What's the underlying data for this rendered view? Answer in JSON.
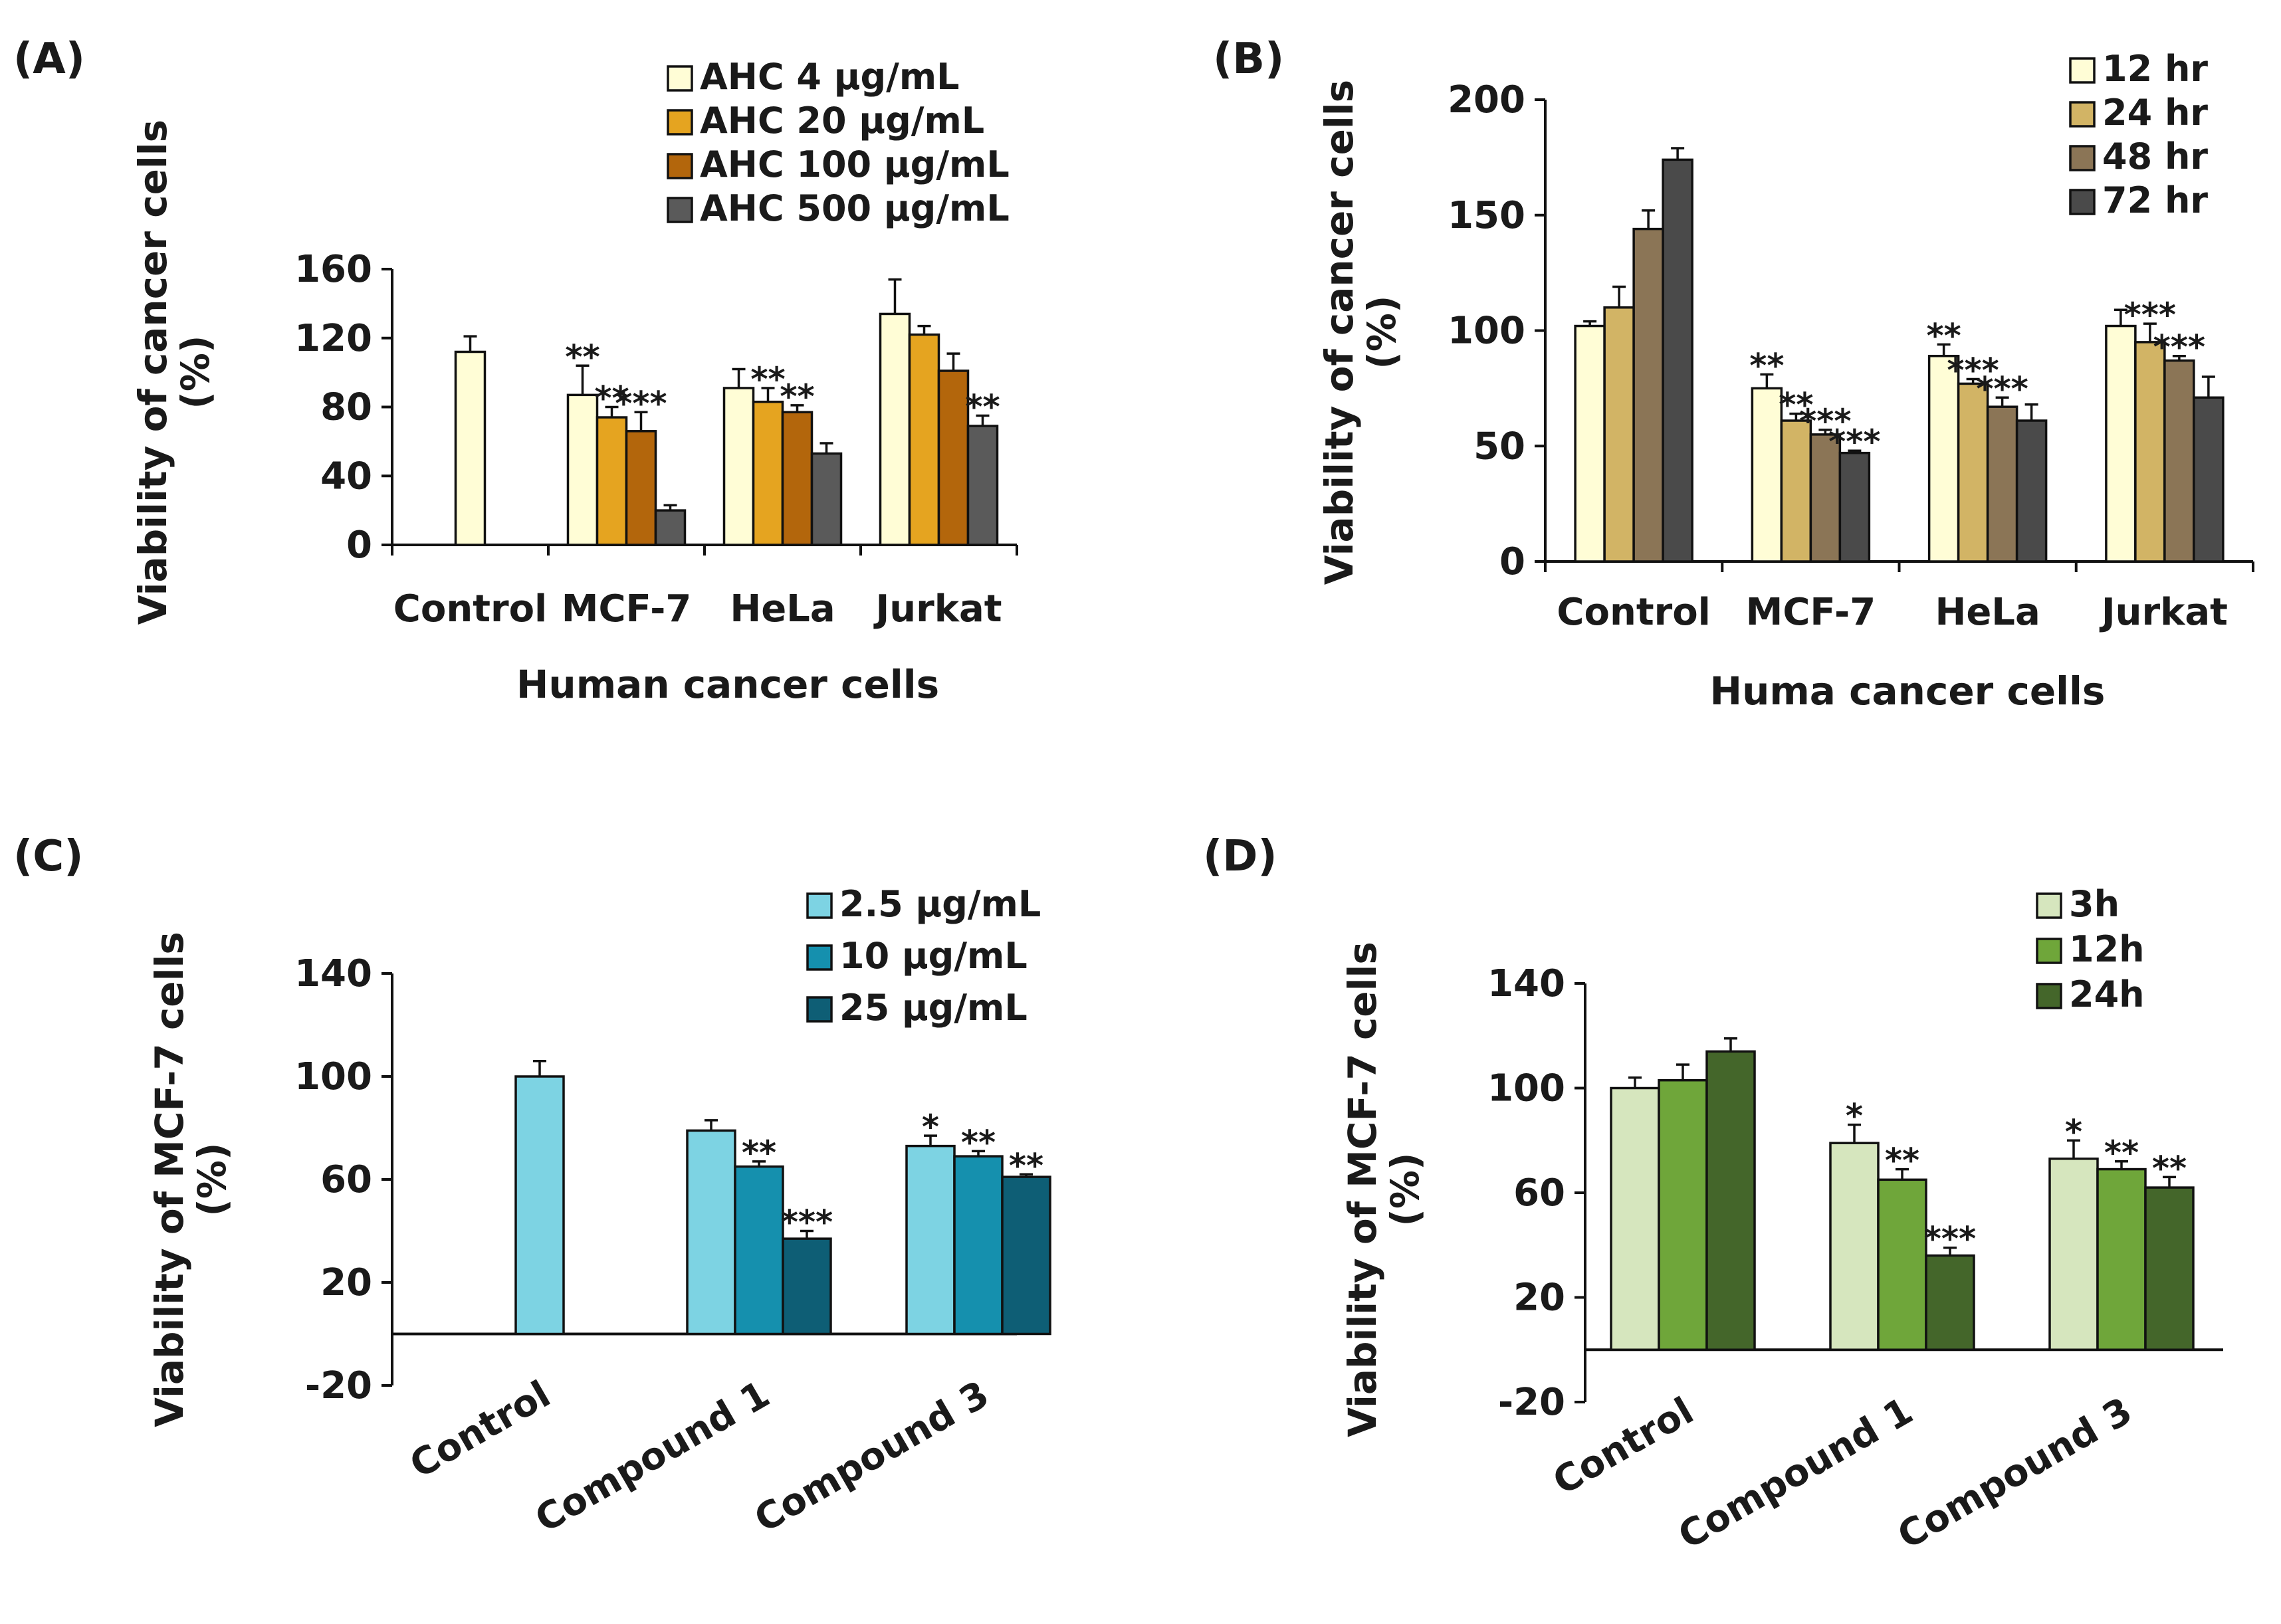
{
  "chart_data": [
    {
      "panel": "(A)",
      "type": "bar",
      "categories": [
        "Control",
        "MCF-7",
        "HeLa",
        "Jurkat"
      ],
      "series": [
        {
          "name": "AHC 4 μg/mL",
          "color": "#FFFDD6",
          "values": [
            112,
            87,
            91,
            134
          ],
          "errors": [
            9,
            17,
            11,
            20
          ],
          "sig": [
            "",
            "**",
            "",
            ""
          ]
        },
        {
          "name": "AHC 20 μg/mL",
          "color": "#E5A420",
          "values": [
            null,
            74,
            83,
            122
          ],
          "errors": [
            null,
            6,
            8,
            5
          ],
          "sig": [
            "",
            "**",
            "**",
            ""
          ]
        },
        {
          "name": "AHC 100 μg/mL",
          "color": "#B3660C",
          "values": [
            null,
            66,
            77,
            101
          ],
          "errors": [
            null,
            11,
            4,
            10
          ],
          "sig": [
            "",
            "***",
            "**",
            ""
          ]
        },
        {
          "name": "AHC 500 μg/mL",
          "color": "#5A5A5A",
          "values": [
            null,
            20,
            53,
            69
          ],
          "errors": [
            null,
            3,
            6,
            6
          ],
          "sig": [
            "",
            "",
            "",
            "**"
          ]
        }
      ],
      "ylim": [
        0,
        160
      ],
      "yticks": [
        0,
        40,
        80,
        120,
        160
      ],
      "ylabel": "Viability of cancer cells (%)",
      "ylabel_lines": [
        "Viability of cancer cells",
        "(%)"
      ],
      "xlabel": "Human cancer cells",
      "legend": "top-right"
    },
    {
      "panel": "(B)",
      "type": "bar",
      "categories": [
        "Control",
        "MCF-7",
        "HeLa",
        "Jurkat"
      ],
      "series": [
        {
          "name": "12 hr",
          "color": "#FFFDD6",
          "values": [
            102,
            75,
            89,
            102
          ],
          "errors": [
            2,
            6,
            5,
            7
          ],
          "sig": [
            "",
            "**",
            "**",
            ""
          ]
        },
        {
          "name": "24 hr",
          "color": "#D2B465",
          "values": [
            110,
            61,
            77,
            95
          ],
          "errors": [
            9,
            3,
            2,
            8
          ],
          "sig": [
            "",
            "**",
            "***",
            "***"
          ]
        },
        {
          "name": "48 hr",
          "color": "#8B7556",
          "values": [
            144,
            55,
            67,
            87
          ],
          "errors": [
            8,
            2,
            4,
            2
          ],
          "sig": [
            "",
            "***",
            "***",
            "***"
          ]
        },
        {
          "name": "72 hr",
          "color": "#4A4A4A",
          "values": [
            174,
            47,
            61,
            71
          ],
          "errors": [
            5,
            1,
            7,
            9
          ],
          "sig": [
            "",
            "***",
            "",
            ""
          ]
        }
      ],
      "ylim": [
        0,
        200
      ],
      "yticks": [
        0,
        50,
        100,
        150,
        200
      ],
      "ylabel": "Viability of cancer cells (%)",
      "ylabel_lines": [
        "Viability of cancer cells",
        "(%)"
      ],
      "xlabel": "Huma cancer cells",
      "legend": "top-right"
    },
    {
      "panel": "(C)",
      "type": "bar",
      "categories": [
        "Control",
        "Compound 1",
        "Compound 3"
      ],
      "series": [
        {
          "name": "2.5 μg/mL",
          "color": "#7DD3E3",
          "values": [
            100,
            79,
            73
          ],
          "errors": [
            6,
            4,
            4
          ],
          "sig": [
            "",
            "",
            "*"
          ]
        },
        {
          "name": "10 μg/mL",
          "color": "#1590AE",
          "values": [
            null,
            65,
            69
          ],
          "errors": [
            null,
            2,
            2
          ],
          "sig": [
            "",
            "**",
            "**"
          ]
        },
        {
          "name": "25 μg/mL",
          "color": "#0E5E75",
          "values": [
            null,
            37,
            61
          ],
          "errors": [
            null,
            3,
            1
          ],
          "sig": [
            "",
            "***",
            "**"
          ]
        }
      ],
      "ylim": [
        -20,
        140
      ],
      "yticks": [
        -20,
        20,
        60,
        100,
        140
      ],
      "ylabel": "Viability of MCF-7 cells (%)",
      "ylabel_lines": [
        "Viability of MCF-7 cells",
        "(%)"
      ],
      "xlabel": "",
      "legend": "top-right"
    },
    {
      "panel": "(D)",
      "type": "bar",
      "categories": [
        "Control",
        "Compound 1",
        "Compound 3"
      ],
      "series": [
        {
          "name": "3h",
          "color": "#D6E6BE",
          "values": [
            100,
            79,
            73
          ],
          "errors": [
            4,
            7,
            7
          ],
          "sig": [
            "",
            "*",
            "*"
          ]
        },
        {
          "name": "12h",
          "color": "#6FA63A",
          "values": [
            103,
            65,
            69
          ],
          "errors": [
            6,
            4,
            3
          ],
          "sig": [
            "",
            "**",
            "**"
          ]
        },
        {
          "name": "24h",
          "color": "#44662A",
          "values": [
            114,
            36,
            62
          ],
          "errors": [
            5,
            3,
            4
          ],
          "sig": [
            "",
            "***",
            "**"
          ]
        }
      ],
      "ylim": [
        -20,
        140
      ],
      "yticks": [
        -20,
        20,
        60,
        100,
        140
      ],
      "ylabel": "Viability of MCF-7 cells (%)",
      "ylabel_lines": [
        "Viability of MCF-7 cells",
        "(%)"
      ],
      "xlabel": "",
      "legend": "top-right"
    }
  ]
}
